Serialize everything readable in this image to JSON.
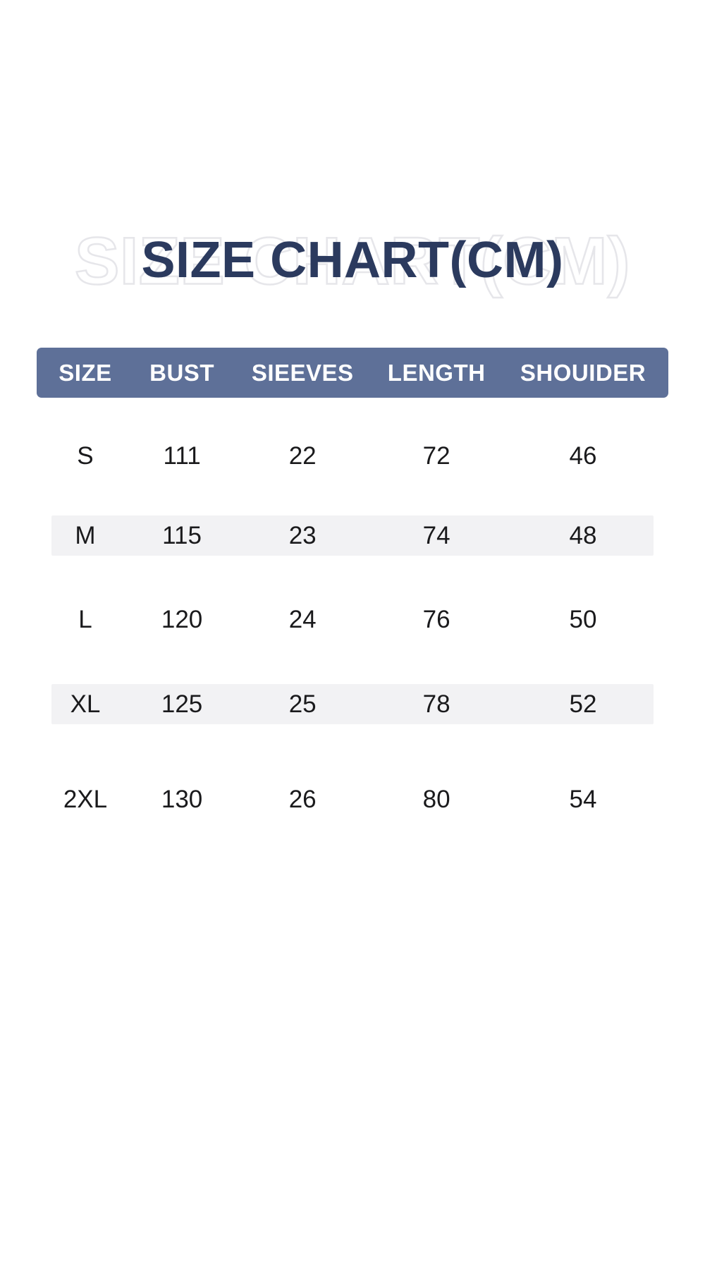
{
  "title": {
    "text": "SIZE CHART(CM)"
  },
  "chart_data": {
    "type": "table",
    "title": "SIZE CHART(CM)",
    "unit_label": "CM",
    "columns": [
      "SIZE",
      "BUST",
      "SIEEVES",
      "LENGTH",
      "SHOUIDER"
    ],
    "rows": [
      [
        "S",
        "111",
        "22",
        "72",
        "46"
      ],
      [
        "M",
        "115",
        "23",
        "74",
        "48"
      ],
      [
        "L",
        "120",
        "24",
        "76",
        "50"
      ],
      [
        "XL",
        "125",
        "25",
        "78",
        "52"
      ],
      [
        "2XL",
        "130",
        "26",
        "80",
        "54"
      ]
    ],
    "shaded_rows": [
      1,
      3
    ],
    "layout": {
      "header_position": "top",
      "value_alignment": "center"
    }
  },
  "colors": {
    "page_background": "#ffffff",
    "title_navy": "#2b3a5e",
    "title_echo_outline": "#e6e6ea",
    "header_background": "#5e7098",
    "header_text": "#ffffff",
    "shaded_row_background": "#f2f2f4",
    "data_text": "#1a1a1c"
  }
}
